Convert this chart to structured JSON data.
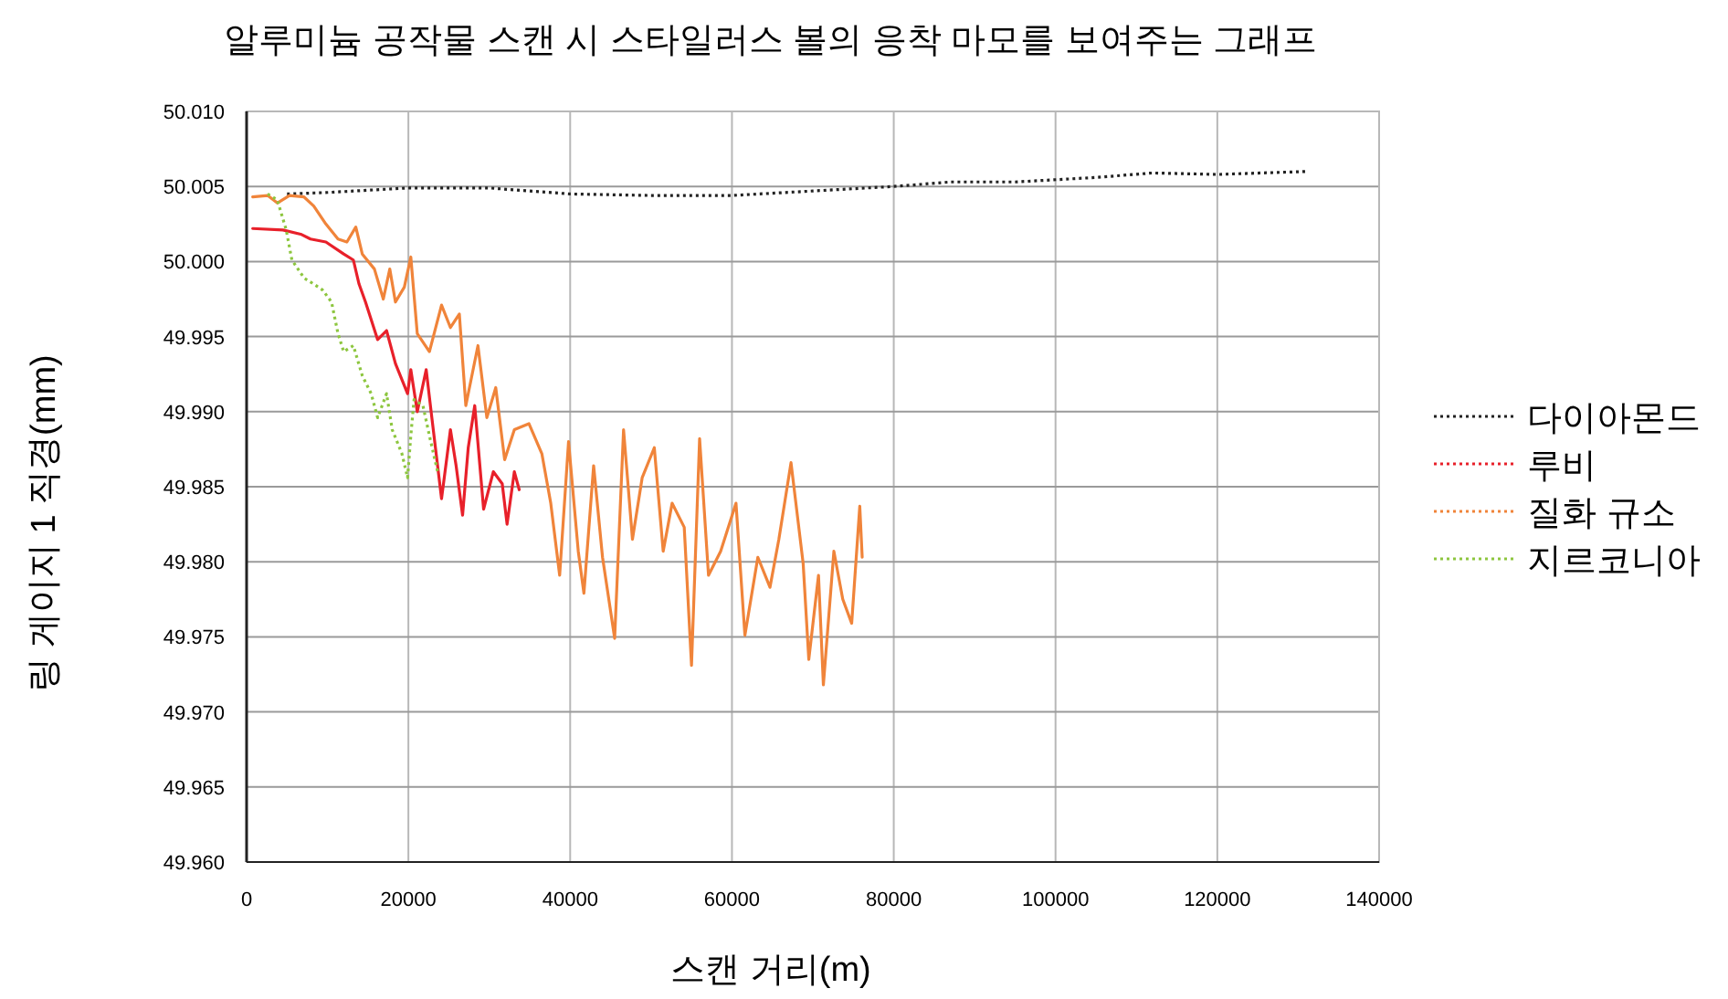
{
  "chart_data": {
    "type": "line",
    "title": "알루미늄 공작물 스캔 시 스타일러스 볼의 응착 마모를 보여주는 그래프",
    "xlabel": "스캔 거리(m)",
    "ylabel": "링 게이지 1 직경(mm)",
    "xlim": [
      0,
      140000
    ],
    "xticks": [
      0,
      20000,
      40000,
      60000,
      80000,
      100000,
      120000,
      140000
    ],
    "ylim": [
      49.96,
      50.01
    ],
    "yticks": [
      {
        "value": 49.96,
        "label": "49.960"
      },
      {
        "value": 49.965,
        "label": "49.965"
      },
      {
        "value": 49.97,
        "label": "49.970"
      },
      {
        "value": 49.975,
        "label": "49.975"
      },
      {
        "value": 49.98,
        "label": "49.980"
      },
      {
        "value": 49.985,
        "label": "49.985"
      },
      {
        "value": 49.99,
        "label": "49.990"
      },
      {
        "value": 49.995,
        "label": "49.995"
      },
      {
        "value": 50,
        "label": "50.000"
      },
      {
        "value": 50.005,
        "label": "50.005"
      },
      {
        "value": 50.01,
        "label": "50.010"
      }
    ],
    "grid": true,
    "legend": "right",
    "marker": "none",
    "series": [
      {
        "name": "다이아몬드",
        "color": "#222222",
        "line_style": "dotted",
        "x": [
          5000,
          10000,
          20000,
          30000,
          40000,
          50000,
          60000,
          70000,
          80000,
          87000,
          95000,
          105000,
          112000,
          120000,
          131000
        ],
        "values": [
          50.0045,
          50.0046,
          50.0049,
          50.0049,
          50.0045,
          50.0044,
          50.0044,
          50.0047,
          50.005,
          50.0053,
          50.0053,
          50.0056,
          50.0059,
          50.0058,
          50.006
        ]
      },
      {
        "name": "루비",
        "color": "#e8202a",
        "line_style": "solid",
        "x": [
          750,
          4500,
          6800,
          7900,
          9800,
          12000,
          13200,
          13900,
          14700,
          16200,
          17300,
          18400,
          19900,
          20300,
          21100,
          22200,
          22900,
          24100,
          25200,
          25900,
          26700,
          27400,
          28200,
          29300,
          30500,
          31600,
          32200,
          33100,
          33700
        ],
        "values": [
          50.0022,
          50.0021,
          50.0018,
          50.0015,
          50.0013,
          50.0005,
          50.0001,
          49.9985,
          49.9973,
          49.9948,
          49.9954,
          49.9932,
          49.9912,
          49.9928,
          49.99,
          49.9928,
          49.9896,
          49.9842,
          49.9888,
          49.9864,
          49.9831,
          49.9876,
          49.9904,
          49.9835,
          49.986,
          49.9852,
          49.9825,
          49.986,
          49.9848
        ]
      },
      {
        "name": "질화 규소",
        "color": "#f0843a",
        "line_style": "solid",
        "x": [
          750,
          2600,
          3800,
          5300,
          7100,
          8300,
          9800,
          11300,
          12400,
          13500,
          14300,
          15800,
          16900,
          17700,
          18400,
          19500,
          20300,
          21100,
          22600,
          24100,
          25200,
          26300,
          27100,
          28600,
          29700,
          30800,
          31900,
          33100,
          34900,
          36500,
          37600,
          38700,
          39800,
          41000,
          41700,
          42900,
          44000,
          45500,
          46600,
          47700,
          48900,
          50400,
          51500,
          52600,
          54100,
          55000,
          56000,
          57100,
          58600,
          60500,
          61600,
          63200,
          64700,
          65800,
          67300,
          68800,
          69500,
          70700,
          71300,
          72600,
          73700,
          74800,
          75800,
          76100
        ],
        "values": [
          50.0043,
          50.0044,
          50.0039,
          50.0044,
          50.0043,
          50.0037,
          50.0025,
          50.0015,
          50.0013,
          50.0023,
          50.0005,
          49.9995,
          49.9975,
          49.9995,
          49.9973,
          49.9983,
          50.0003,
          49.9952,
          49.994,
          49.9971,
          49.9956,
          49.9965,
          49.9904,
          49.9944,
          49.9896,
          49.9916,
          49.9868,
          49.9888,
          49.9892,
          49.9872,
          49.9839,
          49.9791,
          49.988,
          49.9807,
          49.9779,
          49.9864,
          49.9803,
          49.9749,
          49.9888,
          49.9815,
          49.9856,
          49.9876,
          49.9807,
          49.9839,
          49.9823,
          49.9731,
          49.9882,
          49.9791,
          49.9807,
          49.9839,
          49.9751,
          49.9803,
          49.9783,
          49.9815,
          49.9866,
          49.9799,
          49.9735,
          49.9791,
          49.9718,
          49.9807,
          49.9775,
          49.9759,
          49.9837,
          49.9803
        ]
      },
      {
        "name": "지르코니아",
        "color": "#8dc63f",
        "line_style": "dotted",
        "x": [
          2600,
          3800,
          4900,
          5600,
          7100,
          8300,
          9400,
          10500,
          11300,
          12000,
          13200,
          14300,
          15400,
          16200,
          17300,
          18000,
          19200,
          19900,
          20300,
          20700,
          21800,
          22600,
          23700
        ],
        "values": [
          50.0045,
          50.0041,
          50.0021,
          50.0001,
          49.9989,
          49.9985,
          49.9981,
          49.9973,
          49.9952,
          49.994,
          49.9944,
          49.9924,
          49.9912,
          49.9896,
          49.9912,
          49.9888,
          49.9872,
          49.9856,
          49.9884,
          49.9908,
          49.9904,
          49.9884,
          49.9858
        ]
      }
    ]
  }
}
